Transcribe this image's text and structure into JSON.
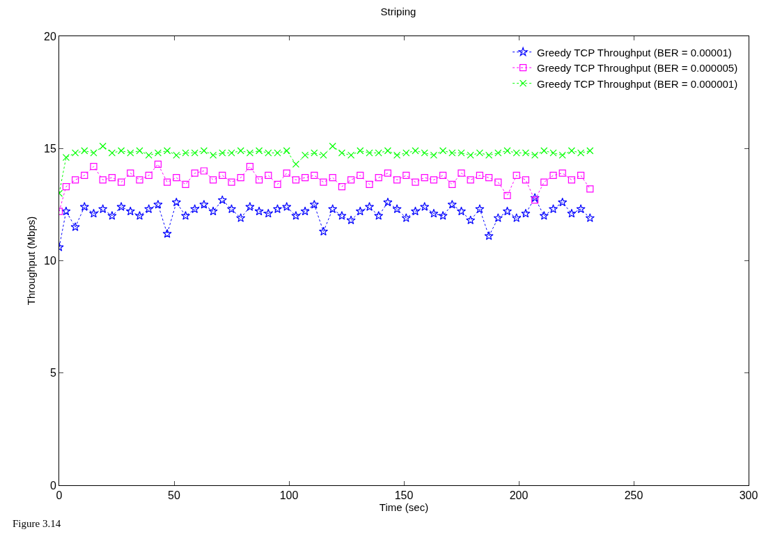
{
  "chart_data": {
    "type": "line",
    "title": "Striping",
    "xlabel": "Time (sec)",
    "ylabel": "Throughput (Mbps)",
    "annotations": [
      "Figure 3.14"
    ],
    "xlim": [
      0,
      300
    ],
    "xticks": [
      0,
      50,
      100,
      150,
      200,
      250,
      300
    ],
    "ylim": [
      0,
      20
    ],
    "yticks": [
      0,
      5,
      10,
      15,
      20
    ],
    "grid": false,
    "legend": "top right",
    "x": [
      0,
      3,
      7,
      11,
      15,
      19,
      23,
      27,
      31,
      35,
      39,
      43,
      47,
      51,
      55,
      59,
      63,
      67,
      71,
      75,
      79,
      83,
      87,
      91,
      95,
      99,
      103,
      107,
      111,
      115,
      119,
      123,
      127,
      131,
      135,
      139,
      143,
      147,
      151,
      155,
      159,
      163,
      167,
      171,
      175,
      179,
      183,
      187,
      191,
      195,
      199,
      203,
      207,
      211,
      215,
      219,
      223,
      227,
      231
    ],
    "series": [
      {
        "name": "Greedy TCP Throughput (BER = 0.00001)",
        "color": "#0000ff",
        "marker": "star",
        "line_style": "dotted",
        "values": [
          10.6,
          12.2,
          11.5,
          12.4,
          12.1,
          12.3,
          12.0,
          12.4,
          12.2,
          12.0,
          12.3,
          12.5,
          11.2,
          12.6,
          12.0,
          12.3,
          12.5,
          12.2,
          12.7,
          12.3,
          11.9,
          12.4,
          12.2,
          12.1,
          12.3,
          12.4,
          12.0,
          12.2,
          12.5,
          11.3,
          12.3,
          12.0,
          11.8,
          12.2,
          12.4,
          12.0,
          12.6,
          12.3,
          11.9,
          12.2,
          12.4,
          12.1,
          12.0,
          12.5,
          12.2,
          11.8,
          12.3,
          11.1,
          11.9,
          12.2,
          11.9,
          12.1,
          12.8,
          12.0,
          12.3,
          12.6,
          12.1,
          12.3,
          11.9
        ]
      },
      {
        "name": "Greedy TCP Throughput (BER = 0.000005)",
        "color": "#ff00ff",
        "marker": "square",
        "line_style": "dotted",
        "values": [
          12.2,
          13.3,
          13.6,
          13.8,
          14.2,
          13.6,
          13.7,
          13.5,
          13.9,
          13.6,
          13.8,
          14.3,
          13.5,
          13.7,
          13.4,
          13.9,
          14.0,
          13.6,
          13.8,
          13.5,
          13.7,
          14.2,
          13.6,
          13.8,
          13.4,
          13.9,
          13.6,
          13.7,
          13.8,
          13.5,
          13.7,
          13.3,
          13.6,
          13.8,
          13.4,
          13.7,
          13.9,
          13.6,
          13.8,
          13.5,
          13.7,
          13.6,
          13.8,
          13.4,
          13.9,
          13.6,
          13.8,
          13.7,
          13.5,
          12.9,
          13.8,
          13.6,
          12.7,
          13.5,
          13.8,
          13.9,
          13.6,
          13.8,
          13.2
        ]
      },
      {
        "name": "Greedy TCP Throughput (BER = 0.000001)",
        "color": "#00ff00",
        "marker": "cross",
        "line_style": "dotted",
        "values": [
          13.0,
          14.6,
          14.8,
          14.9,
          14.8,
          15.1,
          14.8,
          14.9,
          14.8,
          14.9,
          14.7,
          14.8,
          14.9,
          14.7,
          14.8,
          14.8,
          14.9,
          14.7,
          14.8,
          14.8,
          14.9,
          14.8,
          14.9,
          14.8,
          14.8,
          14.9,
          14.3,
          14.7,
          14.8,
          14.7,
          15.1,
          14.8,
          14.7,
          14.9,
          14.8,
          14.8,
          14.9,
          14.7,
          14.8,
          14.9,
          14.8,
          14.7,
          14.9,
          14.8,
          14.8,
          14.7,
          14.8,
          14.7,
          14.8,
          14.9,
          14.8,
          14.8,
          14.7,
          14.9,
          14.8,
          14.7,
          14.9,
          14.8,
          14.9
        ]
      }
    ]
  }
}
